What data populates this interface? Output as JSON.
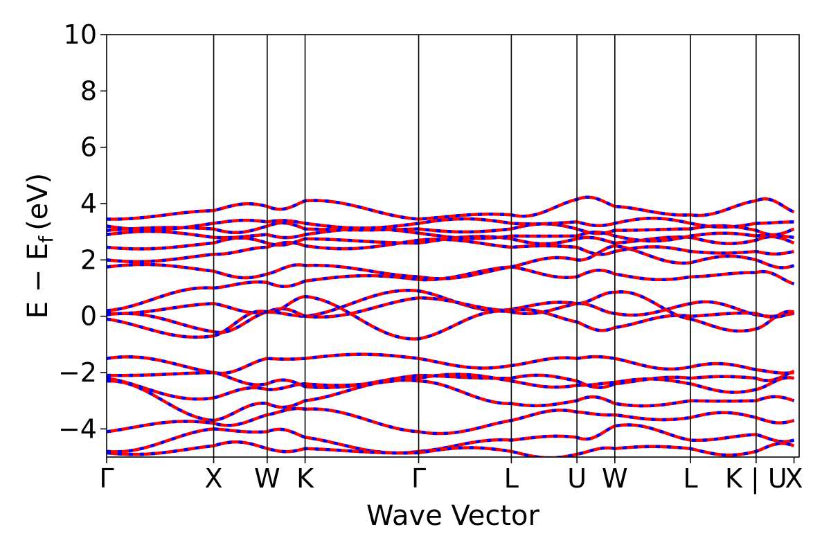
{
  "chart_data": {
    "type": "line",
    "title": "",
    "xlabel": "Wave Vector",
    "ylabel": "E − E",
    "ylabel_sub": "f",
    "ylabel_unit": "(eV)",
    "ylim": [
      -5,
      10
    ],
    "yticks": [
      10,
      8,
      6,
      4,
      2,
      0,
      -2,
      -4
    ],
    "ytick_labels": [
      "10",
      "8",
      "6",
      "4",
      "2",
      "0",
      "−2",
      "−4"
    ],
    "xlim": [
      0,
      6.47
    ],
    "kpath": [
      {
        "label": "Γ",
        "x": 0.0
      },
      {
        "label": "X",
        "x": 1.0
      },
      {
        "label": "W",
        "x": 1.5
      },
      {
        "label": "K",
        "x": 1.854
      },
      {
        "label": "Γ",
        "x": 2.915
      },
      {
        "label": "L",
        "x": 3.781
      },
      {
        "label": "U",
        "x": 4.394
      },
      {
        "label": "W",
        "x": 4.748
      },
      {
        "label": "L",
        "x": 5.455
      },
      {
        "label": "K | U",
        "x": 6.068
      },
      {
        "label": "X",
        "x": 6.422
      }
    ],
    "legend": "none",
    "grid": false,
    "colors": {
      "series_a": "#ff0000",
      "series_b": "#0000ff",
      "vlines": "#000000"
    },
    "bands": [
      {
        "name": "",
        "y": [
          0.05,
          -0.55,
          0.15,
          0.0,
          0.9,
          0.25,
          0.45,
          0.1,
          0.45,
          0.05,
          0.1
        ]
      },
      {
        "name": "",
        "y": [
          0.1,
          0.45,
          0.15,
          0.0,
          0.65,
          0.2,
          -0.2,
          -0.4,
          0.0,
          0.1,
          0.15
        ]
      },
      {
        "name": "",
        "y": [
          -0.1,
          -0.7,
          0.15,
          0.7,
          -0.8,
          0.15,
          0.45,
          0.85,
          -0.1,
          -0.45,
          0.15
        ]
      },
      {
        "name": "",
        "y": [
          0.2,
          1.0,
          1.2,
          1.25,
          1.3,
          1.75,
          1.4,
          1.5,
          1.4,
          1.55,
          1.15
        ]
      },
      {
        "name": "",
        "y": [
          1.75,
          1.6,
          1.5,
          1.8,
          1.4,
          1.75,
          2.0,
          2.5,
          1.9,
          2.0,
          1.8
        ]
      },
      {
        "name": "",
        "y": [
          2.0,
          2.2,
          2.45,
          2.5,
          2.7,
          2.45,
          2.45,
          2.3,
          2.3,
          2.3,
          2.3
        ]
      },
      {
        "name": "",
        "y": [
          2.45,
          2.6,
          2.6,
          2.75,
          2.6,
          2.75,
          2.75,
          2.6,
          2.8,
          2.7,
          2.6
        ]
      },
      {
        "name": "",
        "y": [
          2.9,
          2.8,
          2.9,
          2.9,
          2.95,
          2.85,
          2.85,
          2.85,
          2.85,
          2.85,
          2.8
        ]
      },
      {
        "name": "",
        "y": [
          3.05,
          3.1,
          3.2,
          3.1,
          3.1,
          3.1,
          3.1,
          3.05,
          3.1,
          3.05,
          3.1
        ]
      },
      {
        "name": "",
        "y": [
          3.2,
          3.3,
          3.35,
          3.3,
          3.3,
          3.3,
          3.35,
          3.3,
          3.3,
          3.3,
          3.35
        ]
      },
      {
        "name": "",
        "y": [
          3.45,
          3.75,
          3.9,
          4.1,
          3.45,
          3.6,
          4.15,
          3.9,
          3.6,
          4.1,
          3.7
        ]
      },
      {
        "name": "",
        "y": [
          -1.5,
          -2.0,
          -1.5,
          -1.5,
          -1.5,
          -1.75,
          -1.5,
          -1.5,
          -1.8,
          -1.9,
          -2.0
        ]
      },
      {
        "name": "",
        "y": [
          -2.1,
          -2.0,
          -2.4,
          -2.5,
          -2.1,
          -2.2,
          -2.3,
          -2.4,
          -2.2,
          -2.2,
          -1.95
        ]
      },
      {
        "name": "",
        "y": [
          -2.2,
          -2.9,
          -2.6,
          -2.4,
          -2.2,
          -2.3,
          -2.45,
          -2.35,
          -2.4,
          -2.6,
          -2.2
        ]
      },
      {
        "name": "",
        "y": [
          -2.3,
          -3.7,
          -3.1,
          -3.0,
          -2.3,
          -3.1,
          -3.0,
          -3.1,
          -3.0,
          -3.0,
          -3.0
        ]
      },
      {
        "name": "",
        "y": [
          -4.1,
          -3.8,
          -3.5,
          -3.3,
          -4.1,
          -3.7,
          -3.4,
          -3.5,
          -3.6,
          -3.6,
          -3.7
        ]
      },
      {
        "name": "",
        "y": [
          -4.8,
          -4.0,
          -4.1,
          -4.3,
          -4.8,
          -4.4,
          -4.3,
          -3.9,
          -4.4,
          -4.2,
          -4.4
        ]
      },
      {
        "name": "",
        "y": [
          -4.85,
          -4.6,
          -4.7,
          -4.7,
          -4.85,
          -4.8,
          -4.9,
          -4.7,
          -4.7,
          -4.8,
          -4.6
        ]
      }
    ]
  }
}
